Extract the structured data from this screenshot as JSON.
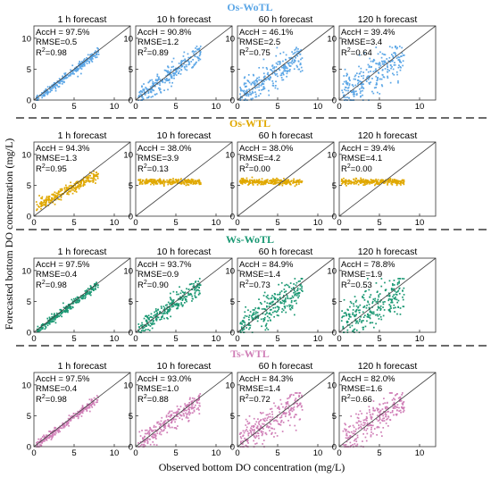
{
  "figure": {
    "ylabel": "Forecasted bottom DO concentration (mg/L)",
    "xlabel": "Observed bottom DO concentration (mg/L)"
  },
  "chart_data": {
    "type": "scatter",
    "xlim": [
      0,
      12
    ],
    "ylim": [
      0,
      12
    ],
    "xticks": [
      "0",
      "5",
      "10"
    ],
    "yticks": [
      "0",
      "5",
      "10"
    ],
    "panel_titles": [
      "1 h forecast",
      "10 h forecast",
      "60 h forecast",
      "120 h forecast"
    ],
    "reference_line": "1:1",
    "groups": [
      {
        "label": "Os-WoTL",
        "color": "#5ba6e6",
        "panels": [
          {
            "acc": "AccH = 97.5%",
            "rmse": "RMSE=0.5",
            "r2": "0.98"
          },
          {
            "acc": "AccH = 90.8%",
            "rmse": "RMSE=1.2",
            "r2": "0.89"
          },
          {
            "acc": "AccH = 46.1%",
            "rmse": "RMSE=2.5",
            "r2": "0.75"
          },
          {
            "acc": "AccH = 39.4%",
            "rmse": "RMSE=3.4",
            "r2": "0.64"
          }
        ]
      },
      {
        "label": "Os-WTL",
        "color": "#e0a800",
        "panels": [
          {
            "acc": "AccH = 94.3%",
            "rmse": "RMSE=1.3",
            "r2": "0.95"
          },
          {
            "acc": "AccH = 38.0%",
            "rmse": "RMSE=3.9",
            "r2": "0.13"
          },
          {
            "acc": "AccH = 38.0%",
            "rmse": "RMSE=4.2",
            "r2": "0.00"
          },
          {
            "acc": "AccH = 39.4%",
            "rmse": "RMSE=4.1",
            "r2": "0.00"
          }
        ]
      },
      {
        "label": "Ws-WoTL",
        "color": "#1a9873",
        "panels": [
          {
            "acc": "AccH = 97.5%",
            "rmse": "RMSE=0.4",
            "r2": "0.98"
          },
          {
            "acc": "AccH = 93.7%",
            "rmse": "RMSE=0.9",
            "r2": "0.90"
          },
          {
            "acc": "AccH = 84.9%",
            "rmse": "RMSE=1.4",
            "r2": "0.73"
          },
          {
            "acc": "AccH = 78.8%",
            "rmse": "RMSE=1.9",
            "r2": "0.53"
          }
        ]
      },
      {
        "label": "Ts-WTL",
        "color": "#d07fb7",
        "panels": [
          {
            "acc": "AccH = 97.5%",
            "rmse": "RMSE=0.4",
            "r2": "0.98"
          },
          {
            "acc": "AccH = 93.0%",
            "rmse": "RMSE=1.0",
            "r2": "0.88"
          },
          {
            "acc": "AccH = 84.3%",
            "rmse": "RMSE=1.4",
            "r2": "0.72"
          },
          {
            "acc": "AccH = 82.0%",
            "rmse": "RMSE=1.6",
            "r2": "0.66"
          }
        ]
      }
    ]
  }
}
